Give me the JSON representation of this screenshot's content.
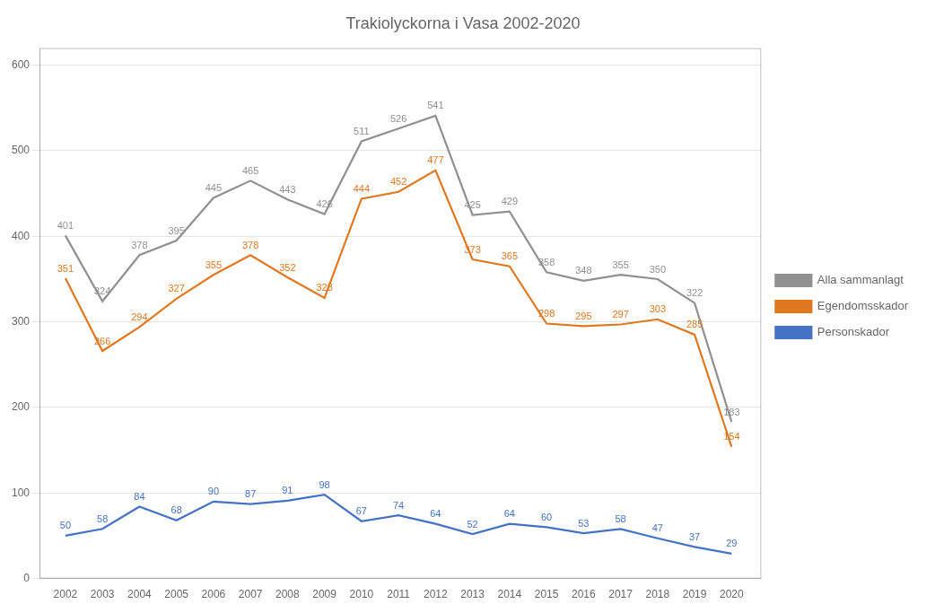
{
  "chart_data": {
    "type": "line",
    "title": "Trakiolyckorna i Vasa 2002-2020",
    "x": [
      2002,
      2003,
      2004,
      2005,
      2006,
      2007,
      2008,
      2009,
      2010,
      2011,
      2012,
      2013,
      2014,
      2015,
      2016,
      2017,
      2018,
      2019,
      2020
    ],
    "xlim": [
      2001.3,
      2020.8
    ],
    "xticks": [
      2002,
      2003,
      2004,
      2005,
      2006,
      2007,
      2008,
      2009,
      2010,
      2011,
      2012,
      2013,
      2014,
      2015,
      2016,
      2017,
      2018,
      2019,
      2020
    ],
    "ylim": [
      0,
      620
    ],
    "yticks": [
      0,
      100,
      200,
      300,
      400,
      500,
      600
    ],
    "grid": "y",
    "legend": "right",
    "data_labels": true,
    "series": [
      {
        "name": "Alla sammanlagt",
        "color": "#909090",
        "values": [
          401,
          324,
          378,
          395,
          445,
          465,
          443,
          426,
          511,
          526,
          541,
          425,
          429,
          358,
          348,
          355,
          350,
          322,
          183
        ]
      },
      {
        "name": "Egendomsskador",
        "color": "#E07820",
        "values": [
          351,
          266,
          294,
          327,
          355,
          378,
          352,
          328,
          444,
          452,
          477,
          373,
          365,
          298,
          295,
          297,
          303,
          285,
          154
        ]
      },
      {
        "name": "Personskador",
        "color": "#4472C4",
        "values": [
          50,
          58,
          84,
          68,
          90,
          87,
          91,
          98,
          67,
          74,
          64,
          52,
          64,
          60,
          53,
          58,
          47,
          37,
          29
        ]
      }
    ]
  }
}
